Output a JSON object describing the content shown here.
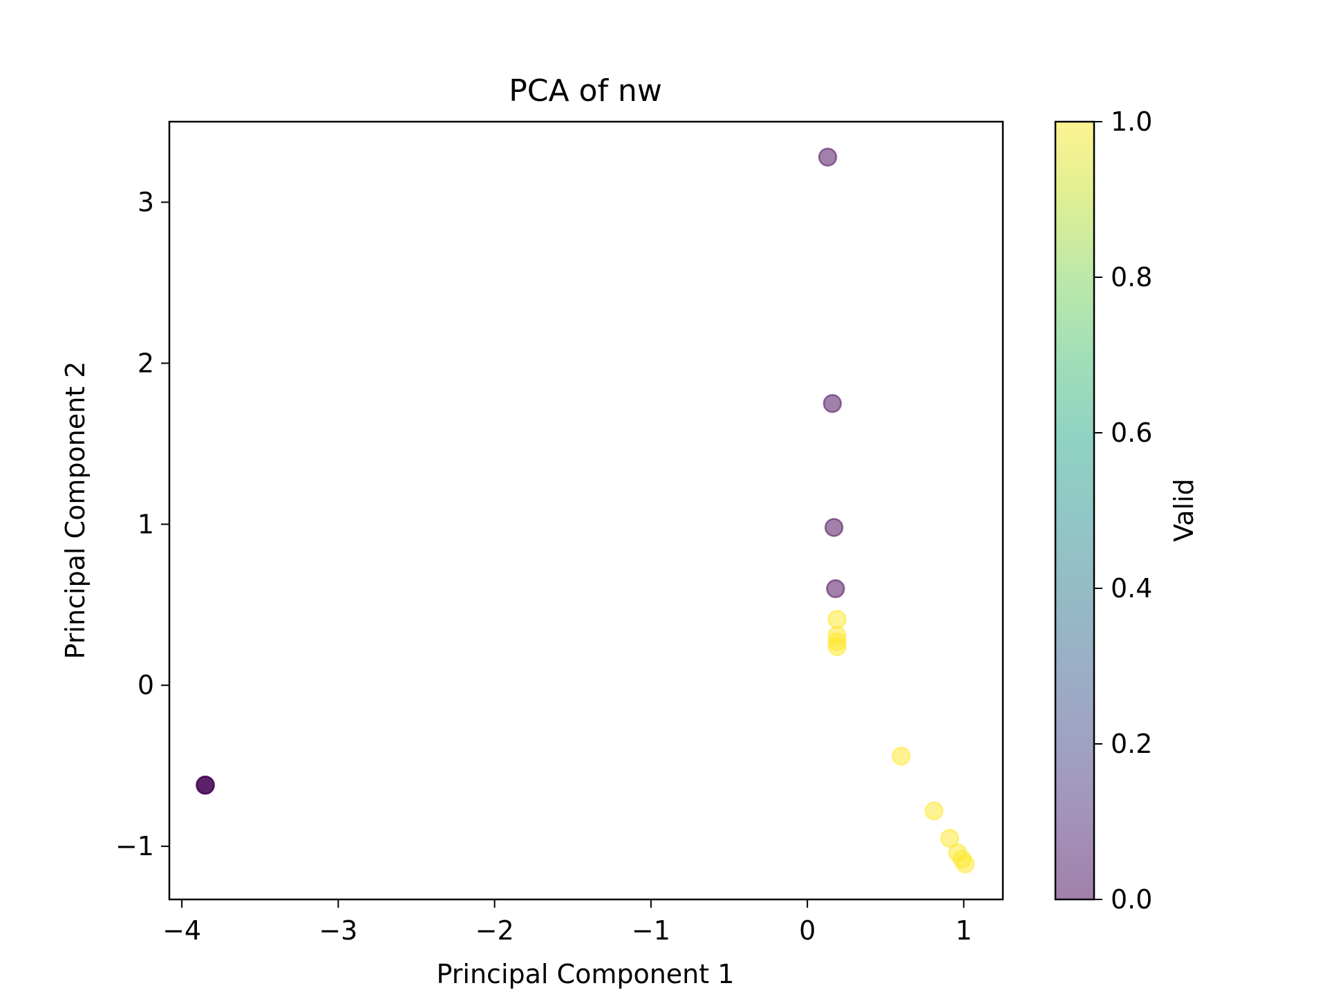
{
  "chart_data": {
    "type": "scatter",
    "title": "PCA of nw",
    "xlabel": "Principal Component 1",
    "ylabel": "Principal Component 2",
    "xlim": [
      -4.08,
      1.25
    ],
    "ylim": [
      -1.33,
      3.5
    ],
    "xticks": [
      -4,
      -3,
      -2,
      -1,
      0,
      1
    ],
    "yticks": [
      -1,
      0,
      1,
      2,
      3
    ],
    "grid": false,
    "legend": "none",
    "colorbar": {
      "label": "Valid",
      "range": [
        0.0,
        1.0
      ],
      "ticks": [
        "0.0",
        "0.2",
        "0.4",
        "0.6",
        "0.8",
        "1.0"
      ],
      "colormap": "viridis",
      "alpha": 0.5
    },
    "points": [
      {
        "x": -3.85,
        "y": -0.62,
        "valid": 0
      },
      {
        "x": -3.85,
        "y": -0.62,
        "valid": 0
      },
      {
        "x": -3.85,
        "y": -0.62,
        "valid": 0
      },
      {
        "x": 0.13,
        "y": 3.28,
        "valid": 0
      },
      {
        "x": 0.16,
        "y": 1.75,
        "valid": 0
      },
      {
        "x": 0.17,
        "y": 0.98,
        "valid": 0
      },
      {
        "x": 0.18,
        "y": 0.6,
        "valid": 0
      },
      {
        "x": 0.19,
        "y": 0.41,
        "valid": 1
      },
      {
        "x": 0.19,
        "y": 0.31,
        "valid": 1
      },
      {
        "x": 0.19,
        "y": 0.27,
        "valid": 1
      },
      {
        "x": 0.19,
        "y": 0.24,
        "valid": 1
      },
      {
        "x": 0.6,
        "y": -0.44,
        "valid": 1
      },
      {
        "x": 0.81,
        "y": -0.78,
        "valid": 1
      },
      {
        "x": 0.91,
        "y": -0.95,
        "valid": 1
      },
      {
        "x": 0.96,
        "y": -1.04,
        "valid": 1
      },
      {
        "x": 0.99,
        "y": -1.08,
        "valid": 1
      },
      {
        "x": 1.01,
        "y": -1.11,
        "valid": 1
      }
    ]
  },
  "colors": {
    "invalid": "#440154",
    "valid": "#fde725",
    "axes": "#000000",
    "background": "#ffffff"
  }
}
